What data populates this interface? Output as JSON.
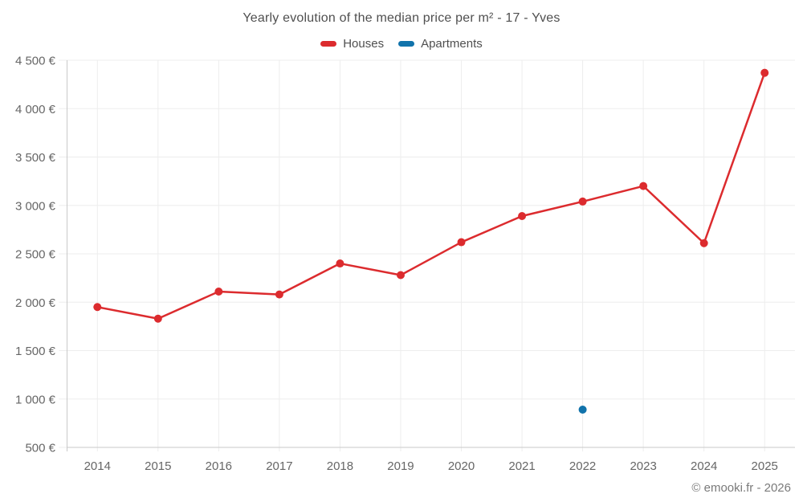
{
  "title": "Yearly evolution of the median price per m² - 17 - Yves",
  "legend": {
    "items": [
      {
        "label": "Houses",
        "color": "#dc2b2e"
      },
      {
        "label": "Apartments",
        "color": "#1173ab"
      }
    ]
  },
  "footer": {
    "credit": "© emooki.fr - 2026"
  },
  "chart_data": {
    "type": "line",
    "title": "Yearly evolution of the median price per m² - 17 - Yves",
    "categories": [
      "2014",
      "2015",
      "2016",
      "2017",
      "2018",
      "2019",
      "2020",
      "2021",
      "2022",
      "2023",
      "2024",
      "2025"
    ],
    "series": [
      {
        "name": "Houses",
        "color": "#dc2b2e",
        "display": "line+markers",
        "values": [
          1950,
          1830,
          2110,
          2080,
          2400,
          2280,
          2620,
          2890,
          3040,
          3200,
          2610,
          4370
        ]
      },
      {
        "name": "Apartments",
        "color": "#1173ab",
        "display": "markers",
        "values": [
          null,
          null,
          null,
          null,
          null,
          null,
          null,
          null,
          890,
          null,
          null,
          null
        ]
      }
    ],
    "ylim": [
      500,
      4500
    ],
    "yticks": [
      {
        "value": 500,
        "label": "500 €"
      },
      {
        "value": 1000,
        "label": "1 000 €"
      },
      {
        "value": 1500,
        "label": "1 500 €"
      },
      {
        "value": 2000,
        "label": "2 000 €"
      },
      {
        "value": 2500,
        "label": "2 500 €"
      },
      {
        "value": 3000,
        "label": "3 000 €"
      },
      {
        "value": 3500,
        "label": "3 500 €"
      },
      {
        "value": 4000,
        "label": "4 000 €"
      },
      {
        "value": 4500,
        "label": "4 500 €"
      }
    ],
    "xlabel": "",
    "ylabel": "",
    "grid": true,
    "legend_position": "top"
  }
}
